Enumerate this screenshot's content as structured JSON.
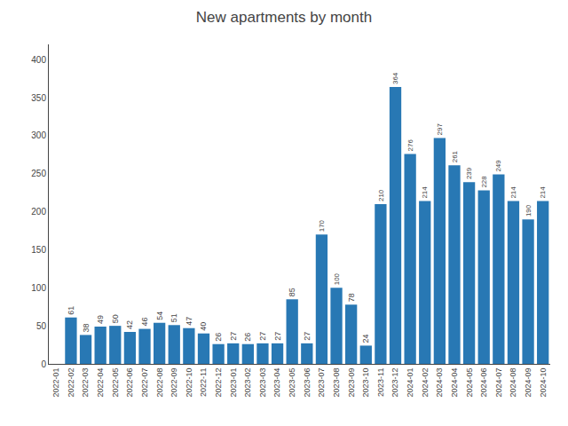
{
  "chart_data": {
    "type": "bar",
    "title": "New apartments by month",
    "categories": [
      "2022-01",
      "2022-02",
      "2022-03",
      "2022-04",
      "2022-05",
      "2022-06",
      "2022-07",
      "2022-08",
      "2022-09",
      "2022-10",
      "2022-11",
      "2022-12",
      "2023-01",
      "2023-02",
      "2023-03",
      "2023-04",
      "2023-05",
      "2023-06",
      "2023-07",
      "2023-08",
      "2023-09",
      "2023-10",
      "2023-11",
      "2023-12",
      "2024-01",
      "2024-02",
      "2024-03",
      "2024-04",
      "2024-05",
      "2024-06",
      "2024-07",
      "2024-08",
      "2024-09",
      "2024-10"
    ],
    "values": [
      0,
      61,
      38,
      49,
      50,
      42,
      46,
      54,
      51,
      47,
      40,
      26,
      27,
      26,
      27,
      27,
      85,
      27,
      170,
      100,
      78,
      24,
      210,
      364,
      276,
      214,
      297,
      261,
      239,
      228,
      249,
      214,
      190,
      214
    ],
    "value_labels": [
      null,
      "61",
      "38",
      "49",
      "50",
      "42",
      "46",
      "54",
      "51",
      "47",
      "40",
      "26",
      "27",
      "26",
      "27",
      "27",
      "85",
      "27",
      "170",
      "100",
      "78",
      "24",
      "210",
      "364",
      "276",
      "214",
      "297",
      "261",
      "239",
      "228",
      "249",
      "214",
      "190",
      "214"
    ],
    "data_labels": true,
    "color": "#2878B4",
    "ylim": [
      0,
      420
    ],
    "yticks": [
      0,
      50,
      100,
      150,
      200,
      250,
      300,
      350,
      400
    ],
    "grid": false
  }
}
